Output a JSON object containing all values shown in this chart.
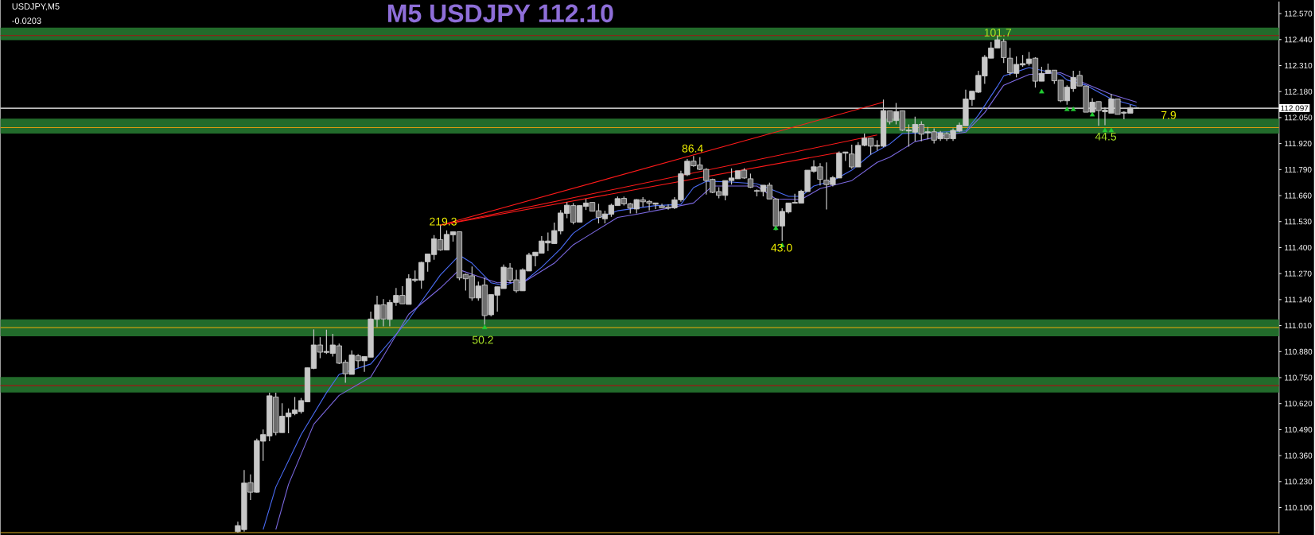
{
  "chart_data": {
    "type": "candlestick",
    "title": "M5 USDJPY 112.10",
    "annotations": [
      "USDJPY,M5",
      "-0.0203",
      "219.3",
      "86.4",
      "50.2",
      "43.0",
      "101.7",
      "44.5",
      "7.9"
    ],
    "color": "#c8c8c8",
    "categories": [
      null,
      null,
      null,
      null,
      null,
      null,
      null,
      null,
      null,
      null,
      null,
      null,
      null,
      null,
      null,
      null,
      null,
      null,
      null,
      null,
      null,
      null,
      null,
      null,
      null,
      null,
      null,
      null,
      null,
      null,
      null,
      null,
      null,
      null,
      null,
      null,
      null,
      null,
      null,
      null,
      null,
      null,
      null,
      null,
      null,
      null,
      null,
      null,
      null,
      null,
      null,
      null,
      null,
      null,
      null,
      null,
      null,
      null,
      null,
      null,
      null,
      null,
      null,
      null,
      null,
      null,
      null,
      null,
      null,
      null,
      null,
      null,
      null,
      null,
      null,
      null,
      null,
      null,
      null,
      null,
      null,
      null,
      null,
      null,
      null,
      null,
      null,
      null,
      null,
      null,
      null,
      null,
      null,
      null,
      null,
      null,
      null,
      null,
      null,
      null,
      null,
      null,
      null,
      null,
      null,
      null,
      null,
      null,
      null,
      null,
      null,
      null,
      null,
      null,
      null,
      null,
      null,
      null,
      null,
      null,
      null,
      null,
      null,
      null,
      null,
      null,
      null,
      null,
      null,
      null,
      null,
      null,
      null,
      null,
      null,
      null,
      null,
      null,
      null,
      null,
      null,
      null,
      null,
      null,
      null,
      null,
      null,
      null,
      null,
      null,
      null,
      null,
      null,
      null,
      null,
      null,
      null,
      null,
      null,
      null,
      null,
      null,
      null,
      null,
      null,
      null,
      null,
      null,
      null,
      null,
      null,
      null,
      null,
      null,
      null,
      null,
      null,
      null,
      null,
      null,
      null,
      null,
      null,
      null,
      null,
      null,
      null,
      null,
      null,
      null,
      null,
      null,
      null,
      null,
      null,
      null,
      null,
      null,
      null,
      null,
      null,
      null
    ],
    "ohlc": [
      null,
      null,
      null,
      null,
      null,
      null,
      null,
      null,
      null,
      null,
      null,
      null,
      null,
      null,
      null,
      null,
      null,
      null,
      null,
      null,
      null,
      null,
      null,
      null,
      null,
      null,
      null,
      null,
      null,
      null,
      null,
      null,
      null,
      null,
      null,
      null,
      null,
      [
        109.98,
        110.03,
        109.975,
        110.01
      ],
      [
        109.99,
        110.288,
        109.98,
        110.223
      ],
      [
        110.225,
        110.266,
        110.138,
        110.177
      ],
      [
        110.177,
        110.445,
        110.175,
        110.435
      ],
      [
        110.432,
        110.491,
        110.334,
        110.465
      ],
      [
        110.458,
        110.674,
        110.432,
        110.659
      ],
      [
        110.653,
        110.674,
        110.462,
        110.475
      ],
      [
        110.475,
        110.622,
        110.475,
        110.557
      ],
      [
        110.554,
        110.596,
        110.472,
        110.573
      ],
      [
        110.57,
        110.653,
        110.562,
        110.588
      ],
      [
        110.58,
        110.648,
        110.57,
        110.635
      ],
      [
        110.629,
        110.799,
        110.629,
        110.799
      ],
      [
        110.796,
        110.991,
        110.792,
        110.913
      ],
      [
        110.913,
        110.952,
        110.847,
        110.877
      ],
      [
        110.876,
        110.989,
        110.868,
        110.881
      ],
      [
        110.871,
        110.969,
        110.855,
        110.913
      ],
      [
        110.909,
        110.92,
        110.818,
        110.822
      ],
      [
        110.827,
        110.838,
        110.724,
        110.769
      ],
      [
        110.766,
        110.886,
        110.766,
        110.863
      ],
      [
        110.859,
        110.867,
        110.799,
        110.834
      ],
      [
        110.834,
        110.855,
        110.779,
        110.855
      ],
      [
        110.852,
        111.08,
        110.852,
        111.043
      ],
      [
        111.041,
        111.159,
        111.002,
        111.114
      ],
      [
        111.114,
        111.142,
        111.006,
        111.043
      ],
      [
        111.041,
        111.139,
        111.006,
        111.126
      ],
      [
        111.126,
        111.198,
        111.109,
        111.161
      ],
      [
        111.161,
        111.207,
        111.119,
        111.119
      ],
      [
        111.116,
        111.267,
        111.116,
        111.244
      ],
      [
        111.236,
        111.286,
        111.227,
        111.242
      ],
      [
        111.237,
        111.329,
        111.194,
        111.326
      ],
      [
        111.329,
        111.368,
        111.28,
        111.368
      ],
      [
        111.365,
        111.462,
        111.339,
        111.444
      ],
      [
        111.44,
        111.512,
        111.384,
        111.388
      ],
      [
        111.388,
        111.486,
        111.388,
        111.466
      ],
      [
        111.464,
        111.479,
        111.43,
        111.479
      ],
      [
        111.479,
        111.479,
        111.237,
        111.248
      ],
      [
        111.266,
        111.27,
        111.185,
        111.244
      ],
      [
        111.259,
        111.305,
        111.135,
        111.148
      ],
      [
        111.148,
        111.23,
        111.135,
        111.208
      ],
      [
        111.213,
        111.25,
        111.014,
        111.06
      ],
      [
        111.064,
        111.165,
        111.056,
        111.165
      ],
      [
        111.162,
        111.204,
        111.08,
        111.204
      ],
      [
        111.195,
        111.315,
        111.195,
        111.302
      ],
      [
        111.298,
        111.322,
        111.224,
        111.237
      ],
      [
        111.239,
        111.289,
        111.174,
        111.184
      ],
      [
        111.184,
        111.296,
        111.184,
        111.289
      ],
      [
        111.283,
        111.374,
        111.283,
        111.363
      ],
      [
        111.359,
        111.377,
        111.306,
        111.377
      ],
      [
        111.372,
        111.457,
        111.372,
        111.433
      ],
      [
        111.423,
        111.475,
        111.383,
        111.433
      ],
      [
        111.42,
        111.525,
        111.42,
        111.485
      ],
      [
        111.483,
        111.588,
        111.466,
        111.573
      ],
      [
        111.571,
        111.627,
        111.547,
        111.612
      ],
      [
        111.61,
        111.622,
        111.516,
        111.527
      ],
      [
        111.527,
        111.61,
        111.527,
        111.61
      ],
      [
        111.606,
        111.643,
        111.588,
        111.623
      ],
      [
        111.626,
        111.626,
        111.582,
        111.582
      ],
      [
        111.584,
        111.619,
        111.521,
        111.551
      ],
      [
        111.544,
        111.584,
        111.521,
        111.568
      ],
      [
        111.567,
        111.619,
        111.554,
        111.612
      ],
      [
        111.61,
        111.655,
        111.61,
        111.645
      ],
      [
        111.646,
        111.655,
        111.61,
        111.619
      ],
      [
        111.619,
        111.623,
        111.571,
        111.597
      ],
      [
        111.593,
        111.642,
        111.571,
        111.64
      ],
      [
        111.639,
        111.652,
        111.603,
        111.629
      ],
      [
        111.631,
        111.637,
        111.586,
        111.622
      ],
      [
        111.617,
        111.623,
        111.593,
        111.623
      ],
      [
        111.608,
        111.619,
        111.597,
        111.599
      ],
      [
        111.603,
        111.616,
        111.59,
        111.597
      ],
      [
        111.599,
        111.652,
        111.593,
        111.639
      ],
      [
        111.639,
        111.784,
        111.629,
        111.769
      ],
      [
        111.764,
        111.843,
        111.758,
        111.832
      ],
      [
        111.832,
        111.858,
        111.804,
        111.809
      ],
      [
        111.813,
        111.852,
        111.787,
        111.791
      ],
      [
        111.791,
        111.797,
        111.665,
        111.735
      ],
      [
        111.741,
        111.745,
        111.672,
        111.676
      ],
      [
        111.68,
        111.702,
        111.646,
        111.661
      ],
      [
        111.661,
        111.735,
        111.636,
        111.735
      ],
      [
        111.735,
        111.796,
        111.715,
        111.748
      ],
      [
        111.744,
        111.784,
        111.744,
        111.784
      ],
      [
        111.787,
        111.797,
        111.744,
        111.748
      ],
      [
        111.744,
        111.77,
        111.698,
        111.702
      ],
      [
        111.682,
        111.691,
        111.656,
        111.685
      ],
      [
        111.68,
        111.712,
        111.656,
        111.712
      ],
      [
        111.712,
        111.725,
        111.643,
        111.643
      ],
      [
        111.643,
        111.647,
        111.486,
        111.508
      ],
      [
        111.508,
        111.597,
        111.434,
        111.581
      ],
      [
        111.578,
        111.623,
        111.571,
        111.623
      ],
      [
        111.622,
        111.669,
        111.622,
        111.626
      ],
      [
        111.622,
        111.689,
        111.622,
        111.682
      ],
      [
        111.68,
        111.787,
        111.68,
        111.787
      ],
      [
        111.781,
        111.837,
        111.774,
        111.804
      ],
      [
        111.804,
        111.822,
        111.711,
        111.741
      ],
      [
        111.737,
        111.826,
        111.591,
        111.715
      ],
      [
        111.715,
        111.758,
        111.706,
        111.75
      ],
      [
        111.748,
        111.881,
        111.748,
        111.872
      ],
      [
        111.872,
        111.879,
        111.833,
        111.878
      ],
      [
        111.868,
        111.915,
        111.794,
        111.803
      ],
      [
        111.803,
        111.927,
        111.803,
        111.911
      ],
      [
        111.911,
        111.97,
        111.907,
        111.947
      ],
      [
        111.947,
        111.947,
        111.865,
        111.907
      ],
      [
        111.907,
        111.937,
        111.885,
        111.911
      ],
      [
        111.907,
        112.14,
        111.902,
        112.085
      ],
      [
        112.084,
        112.084,
        112.016,
        112.029
      ],
      [
        112.035,
        112.123,
        112.016,
        112.08
      ],
      [
        112.084,
        112.084,
        111.983,
        111.987
      ],
      [
        111.983,
        112.016,
        111.905,
        111.988
      ],
      [
        111.977,
        112.055,
        111.931,
        112.016
      ],
      [
        112.016,
        112.032,
        111.931,
        111.967
      ],
      [
        111.974,
        112.003,
        111.941,
        111.979
      ],
      [
        111.979,
        111.996,
        111.92,
        111.937
      ],
      [
        111.944,
        111.983,
        111.933,
        111.974
      ],
      [
        111.97,
        111.977,
        111.933,
        111.944
      ],
      [
        111.944,
        111.996,
        111.933,
        111.986
      ],
      [
        111.983,
        112.025,
        111.977,
        112.012
      ],
      [
        112.009,
        112.19,
        112.009,
        112.143
      ],
      [
        112.14,
        112.182,
        112.108,
        112.182
      ],
      [
        112.177,
        112.284,
        112.173,
        112.261
      ],
      [
        112.258,
        112.363,
        112.219,
        112.352
      ],
      [
        112.347,
        112.428,
        112.347,
        112.398
      ],
      [
        112.398,
        112.461,
        112.398,
        112.439
      ],
      [
        112.431,
        112.444,
        112.323,
        112.35
      ],
      [
        112.347,
        112.398,
        112.261,
        112.274
      ],
      [
        112.271,
        112.356,
        112.251,
        112.316
      ],
      [
        112.313,
        112.363,
        112.304,
        112.32
      ],
      [
        112.32,
        112.378,
        112.31,
        112.343
      ],
      [
        112.347,
        112.352,
        112.2,
        112.232
      ],
      [
        112.232,
        112.304,
        112.232,
        112.271
      ],
      [
        112.271,
        112.32,
        112.271,
        112.287
      ],
      [
        112.287,
        112.287,
        112.219,
        112.234
      ],
      [
        112.237,
        112.237,
        112.127,
        112.134
      ],
      [
        112.134,
        112.212,
        112.114,
        112.202
      ],
      [
        112.195,
        112.284,
        112.179,
        112.251
      ],
      [
        112.261,
        112.284,
        112.208,
        112.208
      ],
      [
        112.208,
        112.208,
        112.077,
        112.077
      ],
      [
        112.077,
        112.147,
        112.075,
        112.127
      ],
      [
        112.13,
        112.13,
        112.009,
        112.085
      ],
      [
        112.079,
        112.101,
        112.012,
        112.088
      ],
      [
        112.072,
        112.169,
        112.072,
        112.143
      ],
      [
        112.143,
        112.143,
        112.066,
        112.066
      ],
      [
        112.072,
        112.081,
        112.042,
        112.077
      ],
      [
        112.072,
        112.114,
        112.072,
        112.098
      ],
      [
        112.097,
        112.101,
        112.095,
        112.097
      ],
      null,
      null,
      null,
      null,
      null,
      null,
      null,
      null,
      null,
      null,
      null,
      null,
      null,
      null,
      null,
      null,
      null,
      null,
      null,
      null,
      null,
      null
    ],
    "series": [
      {
        "type": "line",
        "color": "#4a6cf5",
        "values": [
          null,
          null,
          null,
          null,
          null,
          null,
          null,
          null,
          null,
          null,
          null,
          null,
          null,
          null,
          null,
          null,
          null,
          null,
          null,
          null,
          null,
          null,
          null,
          null,
          null,
          null,
          null,
          null,
          null,
          null,
          null,
          null,
          null,
          null,
          null,
          null,
          null,
          null,
          null,
          null,
          null,
          109.99,
          null,
          110.203,
          null,
          null,
          null,
          110.465,
          null,
          null,
          null,
          110.674,
          null,
          110.766,
          null,
          null,
          null,
          null,
          110.818,
          null,
          null,
          null,
          null,
          null,
          111.041,
          null,
          null,
          null,
          null,
          111.263,
          null,
          null,
          111.362,
          null,
          111.322,
          null,
          null,
          111.224,
          null,
          111.211,
          null,
          111.23,
          111.224,
          null,
          null,
          111.302,
          null,
          null,
          111.394,
          null,
          111.472,
          null,
          null,
          111.538,
          null,
          null,
          null,
          111.584,
          null,
          111.593,
          null,
          null,
          null,
          111.61,
          null,
          null,
          null,
          111.616,
          null,
          111.7,
          null,
          111.732,
          null,
          null,
          null,
          111.728,
          null,
          null,
          null,
          111.719,
          null,
          111.695,
          null,
          null,
          111.656,
          null,
          111.656,
          null,
          111.708,
          null,
          null,
          111.735,
          null,
          null,
          111.787,
          null,
          null,
          111.866,
          null,
          null,
          111.918,
          null,
          111.97,
          null,
          null,
          null,
          null,
          null,
          111.977,
          null,
          null,
          null,
          111.983,
          null,
          112.062,
          null,
          null,
          112.206,
          112.258,
          null,
          null,
          null,
          112.3,
          null,
          null,
          null,
          null,
          112.265,
          112.238,
          null,
          null,
          112.212,
          null,
          null,
          null,
          112.143,
          null,
          null,
          null,
          112.107,
          null,
          null,
          null,
          null,
          null,
          null,
          null,
          null,
          null,
          null,
          null,
          null,
          null,
          null,
          null,
          null,
          null,
          null,
          null,
          null,
          null,
          null
        ]
      },
      {
        "type": "line",
        "color": "#7b68e0",
        "values": [
          null,
          null,
          null,
          null,
          null,
          null,
          null,
          null,
          null,
          null,
          null,
          null,
          null,
          null,
          null,
          null,
          null,
          null,
          null,
          null,
          null,
          null,
          null,
          null,
          null,
          null,
          null,
          null,
          null,
          null,
          null,
          null,
          null,
          null,
          null,
          null,
          null,
          null,
          null,
          null,
          null,
          null,
          null,
          109.99,
          null,
          110.216,
          null,
          null,
          null,
          110.517,
          null,
          null,
          null,
          110.661,
          null,
          null,
          null,
          null,
          110.753,
          null,
          null,
          null,
          null,
          null,
          111.067,
          null,
          null,
          null,
          null,
          111.198,
          null,
          null,
          111.289,
          null,
          null,
          111.256,
          null,
          null,
          111.224,
          null,
          null,
          111.226,
          111.224,
          null,
          null,
          null,
          null,
          111.322,
          null,
          null,
          111.414,
          null,
          111.453,
          null,
          null,
          null,
          null,
          111.551,
          null,
          null,
          111.567,
          null,
          null,
          null,
          null,
          111.597,
          null,
          null,
          null,
          111.623,
          null,
          null,
          111.708,
          null,
          null,
          111.708,
          null,
          null,
          null,
          111.708,
          null,
          null,
          111.643,
          null,
          null,
          null,
          111.64,
          null,
          null,
          111.695,
          null,
          null,
          null,
          null,
          111.735,
          null,
          null,
          null,
          111.826,
          null,
          111.852,
          null,
          null,
          null,
          111.93,
          null,
          null,
          null,
          111.957,
          null,
          null,
          null,
          111.977,
          null,
          null,
          112.075,
          null,
          null,
          112.212,
          null,
          null,
          null,
          112.265,
          null,
          null,
          null,
          null,
          112.274,
          null,
          null,
          null,
          112.219,
          null,
          null,
          null,
          112.166,
          null,
          null,
          null,
          112.127,
          null,
          null,
          null,
          null,
          null,
          null,
          null,
          null,
          null,
          null,
          null,
          null,
          null,
          null,
          null,
          null,
          null,
          null,
          null,
          null,
          null,
          null
        ]
      },
      {
        "type": "line",
        "color": "#ff1a1a",
        "values": [
          null,
          null,
          null,
          null,
          null,
          null,
          null,
          null,
          null,
          null,
          null,
          null,
          null,
          null,
          null,
          null,
          null,
          null,
          null,
          null,
          null,
          null,
          null,
          null,
          null,
          null,
          null,
          null,
          null,
          null,
          null,
          null,
          null,
          null,
          null,
          null,
          null,
          null,
          null,
          null,
          null,
          null,
          null,
          null,
          null,
          null,
          null,
          null,
          null,
          null,
          null,
          null,
          null,
          null,
          null,
          null,
          null,
          null,
          null,
          null,
          null,
          null,
          null,
          null,
          null,
          null,
          null,
          null,
          null,
          111.512,
          null,
          null,
          null,
          null,
          null,
          null,
          null,
          null,
          null,
          null,
          null,
          null,
          null,
          null,
          null,
          null,
          null,
          null,
          null,
          null,
          null,
          null,
          null,
          null,
          null,
          null,
          null,
          null,
          null,
          null,
          null,
          null,
          null,
          null,
          null,
          null,
          null,
          null,
          null,
          null,
          null,
          null,
          null,
          null,
          null,
          null,
          null,
          null,
          null,
          null,
          null,
          null,
          null,
          null,
          null,
          null,
          null,
          null,
          null,
          null,
          null,
          null,
          null,
          null,
          null,
          null,
          null,
          null,
          null,
          112.127,
          null,
          null,
          null,
          null,
          null,
          null,
          null,
          null,
          null,
          null,
          null,
          null,
          null,
          null,
          null,
          null,
          null,
          null,
          null,
          null,
          null,
          null,
          null,
          null,
          null,
          null,
          null,
          null,
          null,
          null,
          null,
          null,
          null,
          null,
          null,
          null,
          null,
          null,
          null,
          null,
          null,
          null,
          null,
          null,
          null,
          null,
          null,
          null,
          null,
          null,
          null,
          null,
          null,
          null,
          null,
          null,
          null,
          null,
          null,
          null,
          null,
          null
        ]
      },
      {
        "type": "line",
        "color": "#ff1a1a",
        "values": [
          null,
          null,
          null,
          null,
          null,
          null,
          null,
          null,
          null,
          null,
          null,
          null,
          null,
          null,
          null,
          null,
          null,
          null,
          null,
          null,
          null,
          null,
          null,
          null,
          null,
          null,
          null,
          null,
          null,
          null,
          null,
          null,
          null,
          null,
          null,
          null,
          null,
          null,
          null,
          null,
          null,
          null,
          null,
          null,
          null,
          null,
          null,
          null,
          null,
          null,
          null,
          null,
          null,
          null,
          null,
          null,
          null,
          null,
          null,
          null,
          null,
          null,
          null,
          null,
          null,
          null,
          null,
          null,
          null,
          111.512,
          null,
          null,
          null,
          null,
          null,
          null,
          null,
          null,
          null,
          null,
          null,
          null,
          null,
          null,
          null,
          null,
          null,
          null,
          null,
          null,
          null,
          null,
          null,
          null,
          null,
          null,
          null,
          null,
          null,
          null,
          null,
          null,
          null,
          null,
          null,
          null,
          null,
          null,
          null,
          null,
          null,
          null,
          null,
          null,
          null,
          null,
          null,
          null,
          null,
          null,
          null,
          null,
          null,
          null,
          null,
          null,
          null,
          null,
          null,
          null,
          null,
          null,
          null,
          null,
          null,
          null,
          null,
          null,
          111.963,
          null,
          null,
          null,
          null,
          null,
          null,
          null,
          null,
          null,
          null,
          null,
          null,
          null,
          null,
          null,
          null,
          null,
          null,
          null,
          null,
          null,
          null,
          null,
          null,
          null,
          null,
          null,
          null,
          null,
          null,
          null,
          null,
          null,
          null,
          null,
          null,
          null,
          null,
          null,
          null,
          null,
          null,
          null,
          null,
          null,
          null,
          null,
          null,
          null,
          null,
          null,
          null,
          null,
          null,
          null,
          null,
          null,
          null,
          null,
          null,
          null,
          null,
          null
        ]
      },
      {
        "type": "line",
        "color": "#ff1a1a",
        "values": [
          null,
          null,
          null,
          null,
          null,
          null,
          null,
          null,
          null,
          null,
          null,
          null,
          null,
          null,
          null,
          null,
          null,
          null,
          null,
          null,
          null,
          null,
          null,
          null,
          null,
          null,
          null,
          null,
          null,
          null,
          null,
          null,
          null,
          null,
          null,
          null,
          null,
          null,
          null,
          null,
          null,
          null,
          null,
          null,
          null,
          null,
          null,
          null,
          null,
          null,
          null,
          null,
          null,
          null,
          null,
          null,
          null,
          null,
          null,
          null,
          null,
          null,
          null,
          null,
          null,
          null,
          null,
          null,
          null,
          111.512,
          null,
          null,
          null,
          null,
          null,
          null,
          null,
          null,
          null,
          null,
          null,
          null,
          null,
          null,
          null,
          null,
          null,
          null,
          null,
          null,
          null,
          null,
          null,
          null,
          null,
          null,
          null,
          null,
          null,
          null,
          null,
          null,
          null,
          null,
          null,
          null,
          null,
          null,
          null,
          null,
          null,
          null,
          null,
          null,
          null,
          null,
          null,
          null,
          null,
          null,
          null,
          null,
          null,
          null,
          null,
          null,
          null,
          null,
          null,
          null,
          null,
          null,
          111.876,
          null,
          null,
          null,
          null,
          null,
          null,
          null,
          null,
          null,
          null,
          null,
          null,
          null,
          null,
          null,
          null,
          null,
          null,
          null,
          null,
          null,
          null,
          null,
          null,
          null,
          null,
          null,
          null,
          null,
          null,
          null,
          null,
          null,
          null,
          null,
          null,
          null,
          null,
          null,
          null,
          null,
          null,
          null,
          null,
          null,
          null,
          null,
          null,
          null,
          null,
          null,
          null,
          null,
          null,
          null,
          null,
          null,
          null,
          null,
          null,
          null,
          null,
          null,
          null,
          null,
          null,
          null,
          null,
          null
        ]
      },
      {
        "type": "scatter",
        "marker": "triangle",
        "color": "#22cc33",
        "values": [
          null,
          null,
          null,
          null,
          null,
          null,
          null,
          null,
          null,
          null,
          null,
          null,
          null,
          null,
          null,
          null,
          null,
          null,
          null,
          null,
          null,
          null,
          null,
          null,
          null,
          null,
          null,
          null,
          null,
          null,
          null,
          null,
          null,
          null,
          null,
          null,
          null,
          null,
          null,
          null,
          null,
          null,
          null,
          null,
          null,
          null,
          null,
          null,
          null,
          null,
          null,
          null,
          null,
          null,
          null,
          null,
          null,
          null,
          null,
          null,
          null,
          null,
          null,
          null,
          null,
          null,
          null,
          null,
          null,
          null,
          null,
          null,
          null,
          null,
          null,
          null,
          111.0,
          null,
          null,
          null,
          null,
          null,
          null,
          null,
          null,
          null,
          null,
          null,
          null,
          null,
          null,
          null,
          null,
          null,
          null,
          null,
          null,
          null,
          null,
          null,
          null,
          null,
          null,
          null,
          null,
          null,
          null,
          null,
          null,
          null,
          null,
          null,
          null,
          null,
          null,
          null,
          null,
          null,
          null,
          null,
          null,
          null,
          111.496,
          111.41,
          null,
          null,
          null,
          null,
          null,
          null,
          null,
          null,
          null,
          null,
          null,
          null,
          null,
          null,
          null,
          null,
          null,
          null,
          null,
          null,
          null,
          null,
          null,
          null,
          null,
          null,
          null,
          null,
          null,
          null,
          null,
          null,
          null,
          null,
          null,
          null,
          null,
          null,
          null,
          null,
          112.179,
          null,
          null,
          null,
          112.09,
          112.09,
          null,
          null,
          112.064,
          null,
          111.985,
          111.985,
          null,
          null,
          null,
          null,
          null,
          null,
          null,
          null,
          null,
          null,
          null,
          null,
          null,
          null,
          null,
          null,
          null,
          null,
          null,
          null,
          null,
          null,
          null,
          null,
          null,
          null
        ]
      }
    ],
    "ref_lines": [
      {
        "axis": "y",
        "value": 112.46,
        "color": "#a01515"
      },
      {
        "axis": "y",
        "value": 112.097,
        "color": "#ffffff",
        "label": "112.097"
      },
      {
        "axis": "y",
        "value": 112.0,
        "color": "#d99a10"
      },
      {
        "axis": "y",
        "value": 111.0,
        "color": "#c8a010"
      },
      {
        "axis": "y",
        "value": 110.71,
        "color": "#a01515"
      },
      {
        "axis": "y",
        "value": 109.975,
        "color": "#e0b020"
      }
    ],
    "bands": [
      {
        "axis": "y",
        "from": 112.437,
        "to": 112.5,
        "color": "#226b2b"
      },
      {
        "axis": "y",
        "from": 111.97,
        "to": 112.045,
        "color": "#226b2b"
      },
      {
        "axis": "y",
        "from": 110.957,
        "to": 111.041,
        "color": "#226b2b"
      },
      {
        "axis": "y",
        "from": 110.675,
        "to": 110.753,
        "color": "#226b2b"
      }
    ],
    "ylim": [
      109.97,
      112.63
    ],
    "yticks": [
      {
        "value": 112.57,
        "label": "112.570"
      },
      {
        "value": 112.44,
        "label": "112.440"
      },
      {
        "value": 112.31,
        "label": "112.310"
      },
      {
        "value": 112.18,
        "label": "112.180"
      },
      {
        "value": 112.05,
        "label": "112.050"
      },
      {
        "value": 111.92,
        "label": "111.920"
      },
      {
        "value": 111.79,
        "label": "111.790"
      },
      {
        "value": 111.66,
        "label": "111.660"
      },
      {
        "value": 111.53,
        "label": "111.530"
      },
      {
        "value": 111.4,
        "label": "111.400"
      },
      {
        "value": 111.27,
        "label": "111.270"
      },
      {
        "value": 111.14,
        "label": "111.140"
      },
      {
        "value": 111.01,
        "label": "111.010"
      },
      {
        "value": 110.88,
        "label": "110.880"
      },
      {
        "value": 110.75,
        "label": "110.750"
      },
      {
        "value": 110.62,
        "label": "110.620"
      },
      {
        "value": 110.49,
        "label": "110.490"
      },
      {
        "value": 110.36,
        "label": "110.360"
      },
      {
        "value": 110.23,
        "label": "110.230"
      },
      {
        "value": 110.1,
        "label": "110.100"
      }
    ],
    "tick_labels": "y"
  }
}
